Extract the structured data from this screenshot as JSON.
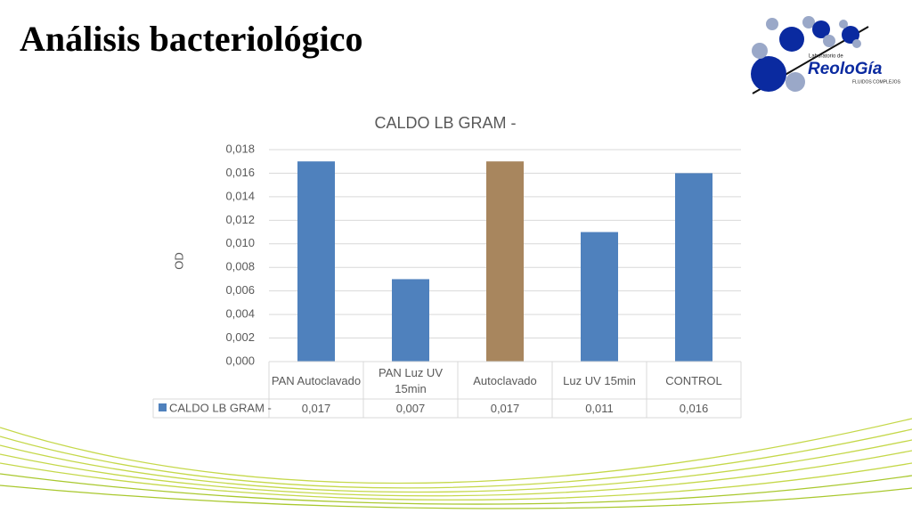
{
  "slide": {
    "title": "Análisis bacteriológico",
    "logo": {
      "top": "Laboratorio de",
      "name": "ReoloGía",
      "bottom": "FLUIDOS COMPLEJOS"
    }
  },
  "chart_data": {
    "type": "bar",
    "title": "CALDO LB GRAM -",
    "y_label": "OD",
    "categories": [
      "PAN Autoclavado",
      "PAN Luz UV 15min",
      "Autoclavado",
      "Luz UV 15min",
      "CONTROL"
    ],
    "series": [
      {
        "name": "CALDO LB GRAM -",
        "color": "#4f81bd",
        "colors": [
          "#4f81bd",
          "#4f81bd",
          "#a8865e",
          "#4f81bd",
          "#4f81bd"
        ],
        "values": [
          0.017,
          0.007,
          0.017,
          0.011,
          0.016
        ],
        "value_labels": [
          "0,017",
          "0,007",
          "0,017",
          "0,011",
          "0,016"
        ]
      }
    ],
    "ylim": [
      0,
      0.018
    ],
    "yticks": [
      {
        "value": 0,
        "label": "0,000"
      },
      {
        "value": 0.002,
        "label": "0,002"
      },
      {
        "value": 0.004,
        "label": "0,004"
      },
      {
        "value": 0.006,
        "label": "0,006"
      },
      {
        "value": 0.008,
        "label": "0,008"
      },
      {
        "value": 0.01,
        "label": "0,010"
      },
      {
        "value": 0.012,
        "label": "0,012"
      },
      {
        "value": 0.014,
        "label": "0,014"
      },
      {
        "value": 0.016,
        "label": "0,016"
      },
      {
        "value": 0.018,
        "label": "0,018"
      }
    ],
    "grid": true,
    "data_table": true
  }
}
